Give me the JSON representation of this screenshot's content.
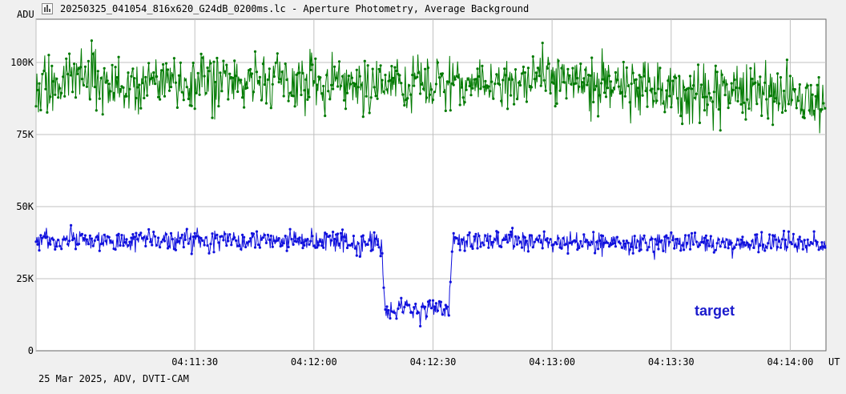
{
  "window": {
    "title": "20250325_041054_816x620_G24dB_0200ms.lc - Aperture Photometry, Average Background",
    "icon": "lightcurve-app-icon"
  },
  "footer": {
    "text": "25 Mar 2025, ADV, DVTI-CAM"
  },
  "chart_data": {
    "type": "line",
    "title": "",
    "xlabel": "UT",
    "ylabel": "ADU",
    "x_range": [
      "04:10:50",
      "04:14:09"
    ],
    "ylim": [
      0,
      115000
    ],
    "grid": true,
    "y_ticks": [
      {
        "value": 0,
        "label": "0"
      },
      {
        "value": 25000,
        "label": "25K"
      },
      {
        "value": 50000,
        "label": "50K"
      },
      {
        "value": 75000,
        "label": "75K"
      },
      {
        "value": 100000,
        "label": "100K"
      }
    ],
    "x_ticks": [
      {
        "value": "04:11:30",
        "label": "04:11:30"
      },
      {
        "value": "04:12:00",
        "label": "04:12:00"
      },
      {
        "value": "04:12:30",
        "label": "04:12:30"
      },
      {
        "value": "04:13:00",
        "label": "04:13:00"
      },
      {
        "value": "04:13:30",
        "label": "04:13:30"
      },
      {
        "value": "04:14:00",
        "label": "04:14:00"
      }
    ],
    "x_unit": "UT",
    "y_unit": "ADU",
    "series": [
      {
        "color": "#007a00",
        "sample_interval_s": 0.2,
        "points": [
          [
            "04:10:50",
            91000
          ],
          [
            "04:11:00",
            95000
          ],
          [
            "04:11:10",
            92000
          ],
          [
            "04:11:20",
            94000
          ],
          [
            "04:11:30",
            93000
          ],
          [
            "04:11:40",
            94000
          ],
          [
            "04:11:50",
            92000
          ],
          [
            "04:12:00",
            93000
          ],
          [
            "04:12:10",
            92000
          ],
          [
            "04:12:20",
            93000
          ],
          [
            "04:12:30",
            91000
          ],
          [
            "04:12:40",
            92000
          ],
          [
            "04:12:50",
            93000
          ],
          [
            "04:13:00",
            95000
          ],
          [
            "04:13:10",
            92000
          ],
          [
            "04:13:20",
            91000
          ],
          [
            "04:13:30",
            90000
          ],
          [
            "04:13:40",
            89000
          ],
          [
            "04:13:50",
            90000
          ],
          [
            "04:14:00",
            89000
          ],
          [
            "04:14:09",
            86000
          ]
        ],
        "scatter": 9000
      },
      {
        "color": "#1010dd",
        "sample_interval_s": 0.2,
        "points": [
          [
            "04:10:50",
            38000
          ],
          [
            "04:11:30",
            38500
          ],
          [
            "04:12:00",
            38000
          ],
          [
            "04:12:10",
            38000
          ],
          [
            "04:12:17",
            37500
          ],
          [
            "04:12:18",
            13500
          ],
          [
            "04:12:25",
            14500
          ],
          [
            "04:12:34",
            14500
          ],
          [
            "04:12:35",
            38500
          ],
          [
            "04:13:00",
            37500
          ],
          [
            "04:13:30",
            37500
          ],
          [
            "04:14:00",
            37500
          ],
          [
            "04:14:09",
            36500
          ]
        ],
        "scatter": 3500
      }
    ],
    "annotations": [
      {
        "text": "target",
        "color": "#1a1acc"
      }
    ]
  }
}
